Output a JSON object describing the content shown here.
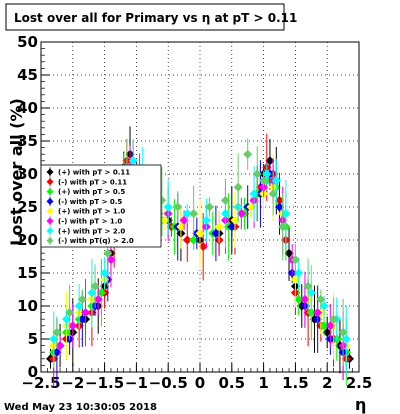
{
  "footer": {
    "timestamp": "Wed May 23 10:30:05 2018"
  },
  "chart_data": {
    "type": "scatter",
    "title": "Lost over all for Primary vs   η at pT > 0.11",
    "xlabel": "η",
    "ylabel": "Lost over all (%)",
    "xlim": [
      -2.5,
      2.5
    ],
    "ylim": [
      0,
      50
    ],
    "x_ticks": [
      "−2.5",
      "−2",
      "−1.5",
      "−1",
      "−0.5",
      "0",
      "0.5",
      "1",
      "1.5",
      "2",
      "2.5"
    ],
    "y_ticks": [
      "0",
      "5",
      "10",
      "15",
      "20",
      "25",
      "30",
      "35",
      "40",
      "45",
      "50"
    ],
    "grid": true,
    "legend_position": "left-middle",
    "series": [
      {
        "name": "(+) with pT > 0.11",
        "color": "#000000",
        "points": [
          [
            -2.35,
            2
          ],
          [
            -2.2,
            4
          ],
          [
            -2.0,
            6
          ],
          [
            -1.8,
            8
          ],
          [
            -1.6,
            10
          ],
          [
            -1.5,
            13
          ],
          [
            -1.4,
            18
          ],
          [
            -1.3,
            26
          ],
          [
            -1.2,
            31
          ],
          [
            -1.1,
            33
          ],
          [
            -1.0,
            30
          ],
          [
            -0.9,
            27
          ],
          [
            -0.7,
            24
          ],
          [
            -0.5,
            23
          ],
          [
            -0.3,
            21
          ],
          [
            0.0,
            20
          ],
          [
            0.3,
            21
          ],
          [
            0.5,
            23
          ],
          [
            0.7,
            24
          ],
          [
            0.9,
            27
          ],
          [
            1.0,
            30
          ],
          [
            1.1,
            32
          ],
          [
            1.2,
            29
          ],
          [
            1.3,
            24
          ],
          [
            1.4,
            18
          ],
          [
            1.5,
            13
          ],
          [
            1.6,
            10
          ],
          [
            1.8,
            8
          ],
          [
            2.0,
            6
          ],
          [
            2.2,
            4
          ],
          [
            2.35,
            2
          ]
        ]
      },
      {
        "name": "(-) with pT > 0.11",
        "color": "#ff0000",
        "points": [
          [
            -2.3,
            2
          ],
          [
            -2.1,
            5
          ],
          [
            -1.9,
            7
          ],
          [
            -1.7,
            9
          ],
          [
            -1.5,
            12
          ],
          [
            -1.35,
            20
          ],
          [
            -1.25,
            28
          ],
          [
            -1.15,
            32
          ],
          [
            -1.05,
            30
          ],
          [
            -0.9,
            27
          ],
          [
            -0.7,
            24
          ],
          [
            -0.45,
            22
          ],
          [
            -0.2,
            20
          ],
          [
            0.05,
            19
          ],
          [
            0.3,
            20
          ],
          [
            0.55,
            22
          ],
          [
            0.8,
            25
          ],
          [
            0.95,
            28
          ],
          [
            1.05,
            31
          ],
          [
            1.15,
            30
          ],
          [
            1.25,
            26
          ],
          [
            1.35,
            20
          ],
          [
            1.5,
            12
          ],
          [
            1.7,
            9
          ],
          [
            1.9,
            7
          ],
          [
            2.1,
            5
          ],
          [
            2.3,
            2
          ]
        ]
      },
      {
        "name": "(+) with pT > 0.5",
        "color": "#00ff00",
        "points": [
          [
            -2.3,
            3
          ],
          [
            -2.1,
            6
          ],
          [
            -1.9,
            8
          ],
          [
            -1.7,
            10
          ],
          [
            -1.55,
            12
          ],
          [
            -1.35,
            22
          ],
          [
            -1.2,
            29
          ],
          [
            -1.1,
            30
          ],
          [
            -0.95,
            28
          ],
          [
            -0.8,
            25
          ],
          [
            -0.6,
            23
          ],
          [
            -0.4,
            22
          ],
          [
            -0.1,
            20
          ],
          [
            0.2,
            21
          ],
          [
            0.45,
            22
          ],
          [
            0.7,
            24
          ],
          [
            0.9,
            27
          ],
          [
            1.05,
            29
          ],
          [
            1.2,
            28
          ],
          [
            1.35,
            22
          ],
          [
            1.55,
            11
          ],
          [
            1.75,
            9
          ],
          [
            1.95,
            7
          ],
          [
            2.15,
            5
          ],
          [
            2.3,
            3
          ]
        ]
      },
      {
        "name": "(-) with pT > 0.5",
        "color": "#0000ff",
        "points": [
          [
            -2.25,
            3
          ],
          [
            -2.05,
            5
          ],
          [
            -1.85,
            8
          ],
          [
            -1.65,
            10
          ],
          [
            -1.45,
            14
          ],
          [
            -1.3,
            24
          ],
          [
            -1.15,
            30
          ],
          [
            -1.0,
            28
          ],
          [
            -0.85,
            26
          ],
          [
            -0.65,
            24
          ],
          [
            -0.35,
            22
          ],
          [
            -0.05,
            21
          ],
          [
            0.25,
            21
          ],
          [
            0.5,
            22
          ],
          [
            0.75,
            25
          ],
          [
            0.95,
            27
          ],
          [
            1.1,
            30
          ],
          [
            1.25,
            25
          ],
          [
            1.45,
            15
          ],
          [
            1.65,
            10
          ],
          [
            1.85,
            8
          ],
          [
            2.05,
            5
          ],
          [
            2.25,
            3
          ]
        ]
      },
      {
        "name": "(+) with pT > 1.0",
        "color": "#ffff00",
        "points": [
          [
            -2.3,
            4
          ],
          [
            -2.1,
            7
          ],
          [
            -1.9,
            9
          ],
          [
            -1.7,
            11
          ],
          [
            -1.5,
            14
          ],
          [
            -1.3,
            25
          ],
          [
            -1.15,
            29
          ],
          [
            -1.0,
            27
          ],
          [
            -0.8,
            25
          ],
          [
            -0.55,
            23
          ],
          [
            -0.3,
            22
          ],
          [
            0.0,
            21
          ],
          [
            0.3,
            22
          ],
          [
            0.55,
            23
          ],
          [
            0.8,
            25
          ],
          [
            1.0,
            27
          ],
          [
            1.15,
            28
          ],
          [
            1.3,
            24
          ],
          [
            1.5,
            14
          ],
          [
            1.7,
            11
          ],
          [
            1.9,
            9
          ],
          [
            2.1,
            7
          ],
          [
            2.3,
            4
          ]
        ]
      },
      {
        "name": "(-) with pT > 1.0",
        "color": "#ff00ff",
        "points": [
          [
            -2.2,
            4
          ],
          [
            -2.0,
            7
          ],
          [
            -1.8,
            9
          ],
          [
            -1.6,
            11
          ],
          [
            -1.4,
            17
          ],
          [
            -1.25,
            27
          ],
          [
            -1.1,
            31
          ],
          [
            -0.95,
            28
          ],
          [
            -0.75,
            25
          ],
          [
            -0.5,
            24
          ],
          [
            -0.25,
            23
          ],
          [
            0.1,
            22
          ],
          [
            0.4,
            23
          ],
          [
            0.65,
            24
          ],
          [
            0.85,
            26
          ],
          [
            1.0,
            28
          ],
          [
            1.15,
            29
          ],
          [
            1.3,
            23
          ],
          [
            1.45,
            17
          ],
          [
            1.65,
            11
          ],
          [
            1.85,
            9
          ],
          [
            2.05,
            7
          ],
          [
            2.25,
            4
          ]
        ]
      },
      {
        "name": "(+) with pT > 2.0",
        "color": "#00ffff",
        "points": [
          [
            -2.3,
            5
          ],
          [
            -2.1,
            8
          ],
          [
            -1.9,
            10
          ],
          [
            -1.7,
            12
          ],
          [
            -1.5,
            15
          ],
          [
            -1.35,
            24
          ],
          [
            -1.2,
            30
          ],
          [
            -1.05,
            32
          ],
          [
            -0.9,
            29
          ],
          [
            -0.7,
            26
          ],
          [
            -0.5,
            25
          ],
          [
            -0.2,
            24
          ],
          [
            0.1,
            23
          ],
          [
            0.4,
            24
          ],
          [
            0.6,
            25
          ],
          [
            0.85,
            27
          ],
          [
            1.05,
            30
          ],
          [
            1.2,
            29
          ],
          [
            1.35,
            24
          ],
          [
            1.55,
            15
          ],
          [
            1.75,
            12
          ],
          [
            1.95,
            10
          ],
          [
            2.15,
            8
          ],
          [
            2.3,
            5
          ]
        ]
      },
      {
        "name": "(-) with pT(q) > 2.0",
        "color": "#66cc66",
        "points": [
          [
            -2.25,
            6
          ],
          [
            -2.05,
            9
          ],
          [
            -1.85,
            11
          ],
          [
            -1.65,
            13
          ],
          [
            -1.45,
            18
          ],
          [
            -1.3,
            26
          ],
          [
            -1.15,
            31
          ],
          [
            -1.0,
            30
          ],
          [
            -0.85,
            28
          ],
          [
            -0.6,
            26
          ],
          [
            -0.35,
            25
          ],
          [
            -0.1,
            24
          ],
          [
            0.15,
            25
          ],
          [
            0.4,
            26
          ],
          [
            0.6,
            28
          ],
          [
            0.75,
            33
          ],
          [
            0.9,
            30
          ],
          [
            1.0,
            29
          ],
          [
            1.15,
            27
          ],
          [
            1.3,
            22
          ],
          [
            1.5,
            17
          ],
          [
            1.7,
            13
          ],
          [
            1.9,
            11
          ],
          [
            2.1,
            8
          ],
          [
            2.25,
            6
          ]
        ]
      }
    ]
  }
}
